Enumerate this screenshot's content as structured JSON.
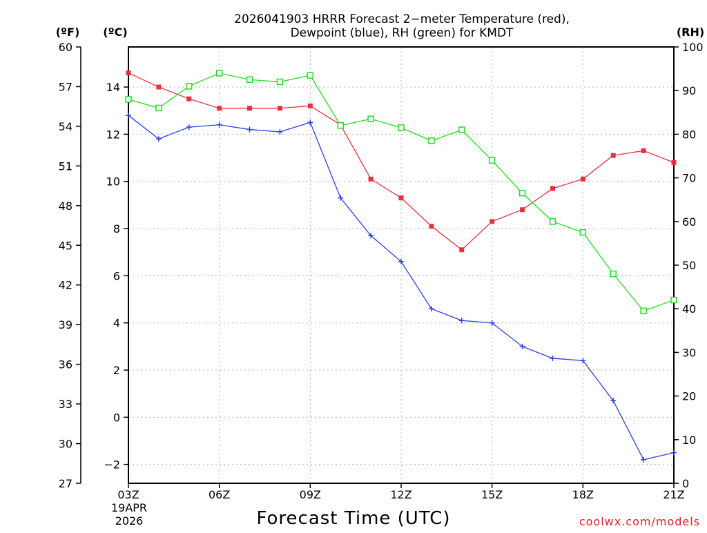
{
  "chart_data": {
    "type": "line",
    "title_line1": "2026041903 HRRR Forecast 2−meter Temperature (red),",
    "title_line2": "Dewpoint (blue), RH (green) for KMDT",
    "xlabel": "Forecast Time (UTC)",
    "credit": "coolwx.com/models",
    "date_label_1": "19APR",
    "date_label_2": "2026",
    "left_outer_unit": "(ºF)",
    "left_inner_unit": "(ºC)",
    "right_unit": "(RH)",
    "hours": [
      3,
      4,
      5,
      6,
      7,
      8,
      9,
      10,
      11,
      12,
      13,
      14,
      15,
      16,
      17,
      18,
      19,
      20,
      21
    ],
    "x_ticks": [
      {
        "hour": 3,
        "label": "03Z"
      },
      {
        "hour": 6,
        "label": "06Z"
      },
      {
        "hour": 9,
        "label": "09Z"
      },
      {
        "hour": 12,
        "label": "12Z"
      },
      {
        "hour": 15,
        "label": "15Z"
      },
      {
        "hour": 18,
        "label": "18Z"
      },
      {
        "hour": 21,
        "label": "21Z"
      }
    ],
    "xlim": [
      3,
      21
    ],
    "ylim_c": [
      -2.8,
      15.7
    ],
    "ylim_f": [
      27,
      60
    ],
    "ylim_rh": [
      0,
      100
    ],
    "c_ticks": [
      "-2",
      "0",
      "2",
      "4",
      "6",
      "8",
      "10",
      "12",
      "14"
    ],
    "f_ticks": [
      "27",
      "30",
      "33",
      "36",
      "39",
      "42",
      "45",
      "48",
      "51",
      "54",
      "57",
      "60"
    ],
    "rh_ticks": [
      "0",
      "10",
      "20",
      "30",
      "40",
      "50",
      "60",
      "70",
      "80",
      "90",
      "100"
    ],
    "series": [
      {
        "name": "2-meter Temperature",
        "axis": "C",
        "color": "#e8303c",
        "marker": "filled-square",
        "values": [
          14.6,
          14.0,
          13.5,
          13.1,
          13.1,
          13.1,
          13.2,
          12.4,
          10.1,
          9.3,
          8.1,
          7.1,
          8.3,
          8.8,
          9.7,
          10.1,
          11.1,
          11.3,
          10.8
        ]
      },
      {
        "name": "Dewpoint",
        "axis": "C",
        "color": "#2b3fe0",
        "marker": "plus",
        "values": [
          12.8,
          11.8,
          12.3,
          12.4,
          12.2,
          12.1,
          12.5,
          9.3,
          7.7,
          6.6,
          4.6,
          4.1,
          4.0,
          3.0,
          2.5,
          2.4,
          0.7,
          -1.8,
          -1.5
        ]
      },
      {
        "name": "RH",
        "axis": "RH",
        "color": "#22dd22",
        "marker": "open-square",
        "values": [
          88,
          86,
          91,
          94,
          92.5,
          92,
          93.5,
          82,
          83.5,
          81.5,
          78.5,
          81,
          74,
          66.5,
          60,
          57.5,
          48,
          39.5,
          42
        ]
      }
    ]
  }
}
